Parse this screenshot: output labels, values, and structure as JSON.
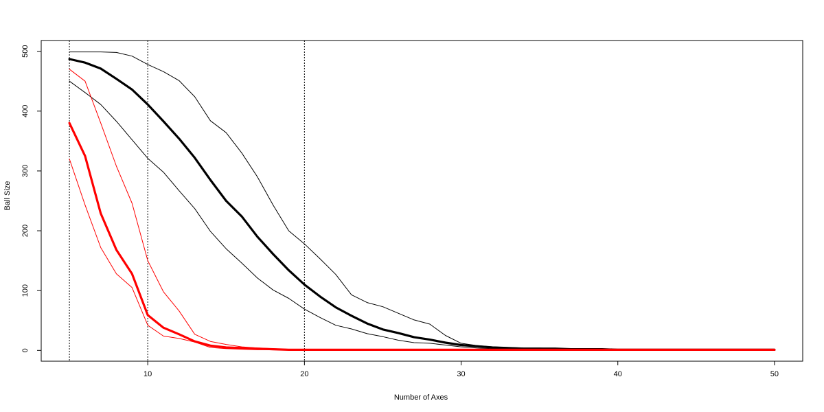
{
  "chart_data": {
    "type": "line",
    "title": "",
    "xlabel": "Number of Axes",
    "ylabel": "Ball Size",
    "xlim": [
      3.2,
      51.8
    ],
    "ylim": [
      -18,
      518
    ],
    "xticks": [
      10,
      20,
      30,
      40,
      50
    ],
    "yticks": [
      0,
      100,
      200,
      300,
      400,
      500
    ],
    "grid": false,
    "legend": "none",
    "vlines": [
      5,
      10,
      20
    ],
    "series": [
      {
        "color": "#000000",
        "width": 3.2,
        "x": [
          5,
          6,
          7,
          8,
          9,
          10,
          11,
          12,
          13,
          14,
          15,
          16,
          17,
          18,
          19,
          20,
          21,
          22,
          23,
          24,
          25,
          26,
          27,
          28,
          29,
          30,
          31,
          32,
          33,
          34,
          35,
          36,
          37,
          38,
          39,
          40,
          41,
          42,
          43,
          44,
          45,
          46,
          47,
          48,
          49,
          50
        ],
        "y": [
          487,
          481,
          471,
          454,
          436,
          411,
          383,
          354,
          322,
          285,
          250,
          224,
          190,
          161,
          134,
          110,
          90,
          72,
          58,
          45,
          35,
          29,
          22,
          18,
          13,
          9,
          7,
          5,
          4,
          3,
          3,
          3,
          2,
          2,
          2,
          1,
          1,
          1,
          1,
          1,
          1,
          1,
          1,
          1,
          1,
          1
        ]
      },
      {
        "color": "#000000",
        "width": 1,
        "x": [
          5,
          6,
          7,
          8,
          9,
          10,
          11,
          12,
          13,
          14,
          15,
          16,
          17,
          18,
          19,
          20,
          21,
          22,
          23,
          24,
          25,
          26,
          27,
          28,
          29,
          30,
          31,
          32,
          33,
          34,
          35,
          36,
          37,
          38,
          39,
          40,
          41,
          42,
          43,
          44,
          45,
          46,
          47,
          48,
          49,
          50
        ],
        "y": [
          499,
          499,
          499,
          498,
          492,
          478,
          466,
          451,
          424,
          384,
          364,
          330,
          290,
          243,
          200,
          178,
          153,
          127,
          93,
          80,
          73,
          62,
          51,
          44,
          25,
          12,
          8,
          6,
          5,
          4,
          4,
          3,
          3,
          2,
          2,
          1,
          1,
          1,
          1,
          1,
          1,
          1,
          1,
          1,
          1,
          1
        ]
      },
      {
        "color": "#000000",
        "width": 1,
        "x": [
          5,
          6,
          7,
          8,
          9,
          10,
          11,
          12,
          13,
          14,
          15,
          16,
          17,
          18,
          19,
          20,
          21,
          22,
          23,
          24,
          25,
          26,
          27,
          28,
          29,
          30,
          31,
          32,
          33,
          34,
          35,
          36,
          37,
          38,
          39,
          40,
          41,
          42,
          43,
          44,
          45,
          46,
          47,
          48,
          49,
          50
        ],
        "y": [
          450,
          431,
          411,
          383,
          352,
          321,
          298,
          267,
          237,
          199,
          170,
          146,
          121,
          101,
          87,
          69,
          55,
          42,
          36,
          28,
          23,
          17,
          13,
          12,
          9,
          6,
          4,
          3,
          3,
          2,
          2,
          2,
          1,
          1,
          1,
          1,
          1,
          1,
          1,
          1,
          1,
          1,
          1,
          1,
          1,
          1
        ]
      },
      {
        "color": "#ff0000",
        "width": 3.2,
        "x": [
          5,
          6,
          7,
          8,
          9,
          10,
          11,
          12,
          13,
          14,
          15,
          16,
          17,
          18,
          19,
          20,
          21,
          22,
          23,
          24,
          25,
          26,
          27,
          28,
          29,
          30,
          31,
          32,
          33,
          34,
          35,
          36,
          37,
          38,
          39,
          40,
          41,
          42,
          43,
          44,
          45,
          46,
          47,
          48,
          49,
          50
        ],
        "y": [
          380,
          325,
          229,
          168,
          128,
          59,
          38,
          27,
          15,
          8,
          5,
          4,
          3,
          2,
          1,
          1,
          1,
          1,
          1,
          1,
          1,
          1,
          1,
          1,
          1,
          1,
          1,
          1,
          1,
          1,
          1,
          1,
          1,
          1,
          1,
          1,
          1,
          1,
          1,
          1,
          1,
          1,
          1,
          1,
          1,
          1
        ]
      },
      {
        "color": "#ff0000",
        "width": 1,
        "x": [
          5,
          6,
          7,
          8,
          9,
          10,
          11,
          12,
          13,
          14,
          15,
          16,
          17,
          18,
          19,
          20,
          21,
          22,
          23,
          24,
          25,
          26,
          27,
          28,
          29,
          30,
          31,
          32,
          33,
          34,
          35,
          36,
          37,
          38,
          39,
          40,
          41,
          42,
          43,
          44,
          45,
          46,
          47,
          48,
          49,
          50
        ],
        "y": [
          470,
          450,
          380,
          308,
          246,
          150,
          98,
          66,
          27,
          15,
          10,
          6,
          4,
          3,
          2,
          2,
          1,
          1,
          1,
          1,
          1,
          1,
          1,
          1,
          1,
          1,
          1,
          1,
          1,
          1,
          1,
          1,
          1,
          1,
          1,
          1,
          1,
          1,
          1,
          1,
          1,
          1,
          1,
          1,
          1,
          1
        ]
      },
      {
        "color": "#ff0000",
        "width": 1,
        "x": [
          5,
          6,
          7,
          8,
          9,
          10,
          11,
          12,
          13,
          14,
          15,
          16,
          17,
          18,
          19,
          20,
          21,
          22,
          23,
          24,
          25,
          26,
          27,
          28,
          29,
          30,
          31,
          32,
          33,
          34,
          35,
          36,
          37,
          38,
          39,
          40,
          41,
          42,
          43,
          44,
          45,
          46,
          47,
          48,
          49,
          50
        ],
        "y": [
          320,
          243,
          172,
          128,
          105,
          42,
          24,
          20,
          14,
          5,
          3,
          2,
          1,
          1,
          1,
          1,
          1,
          1,
          1,
          1,
          1,
          1,
          1,
          1,
          1,
          1,
          1,
          1,
          1,
          1,
          1,
          1,
          1,
          1,
          1,
          1,
          1,
          1,
          1,
          1,
          1,
          1,
          1,
          1,
          1,
          1
        ]
      }
    ]
  }
}
